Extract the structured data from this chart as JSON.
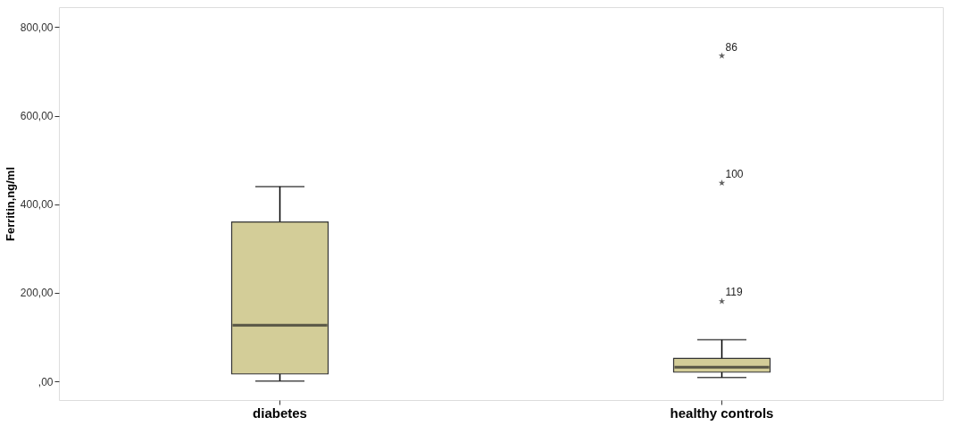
{
  "chart_data": {
    "type": "box",
    "ylabel": "Ferritin,ng/ml",
    "categories": [
      "diabetes",
      "healthy controls"
    ],
    "series": [
      {
        "color": "#d3cd98",
        "boxes": [
          {
            "low": 1,
            "q1": 17,
            "median": 127,
            "q3": 360,
            "high": 440
          },
          {
            "low": 9,
            "q1": 21,
            "median": 32,
            "q3": 52,
            "high": 94,
            "outliers": [
              735,
              448,
              181
            ]
          }
        ]
      }
    ],
    "marker": "star",
    "annotations": [
      "86",
      "100",
      "119"
    ],
    "ylim": [
      -42,
      845
    ],
    "yticks": [
      {
        "value": 0,
        "label": ",00"
      },
      {
        "value": 200,
        "label": "200,00"
      },
      {
        "value": 400,
        "label": "400,00"
      },
      {
        "value": 600,
        "label": "600,00"
      },
      {
        "value": 800,
        "label": "800,00"
      }
    ],
    "grid": false
  }
}
